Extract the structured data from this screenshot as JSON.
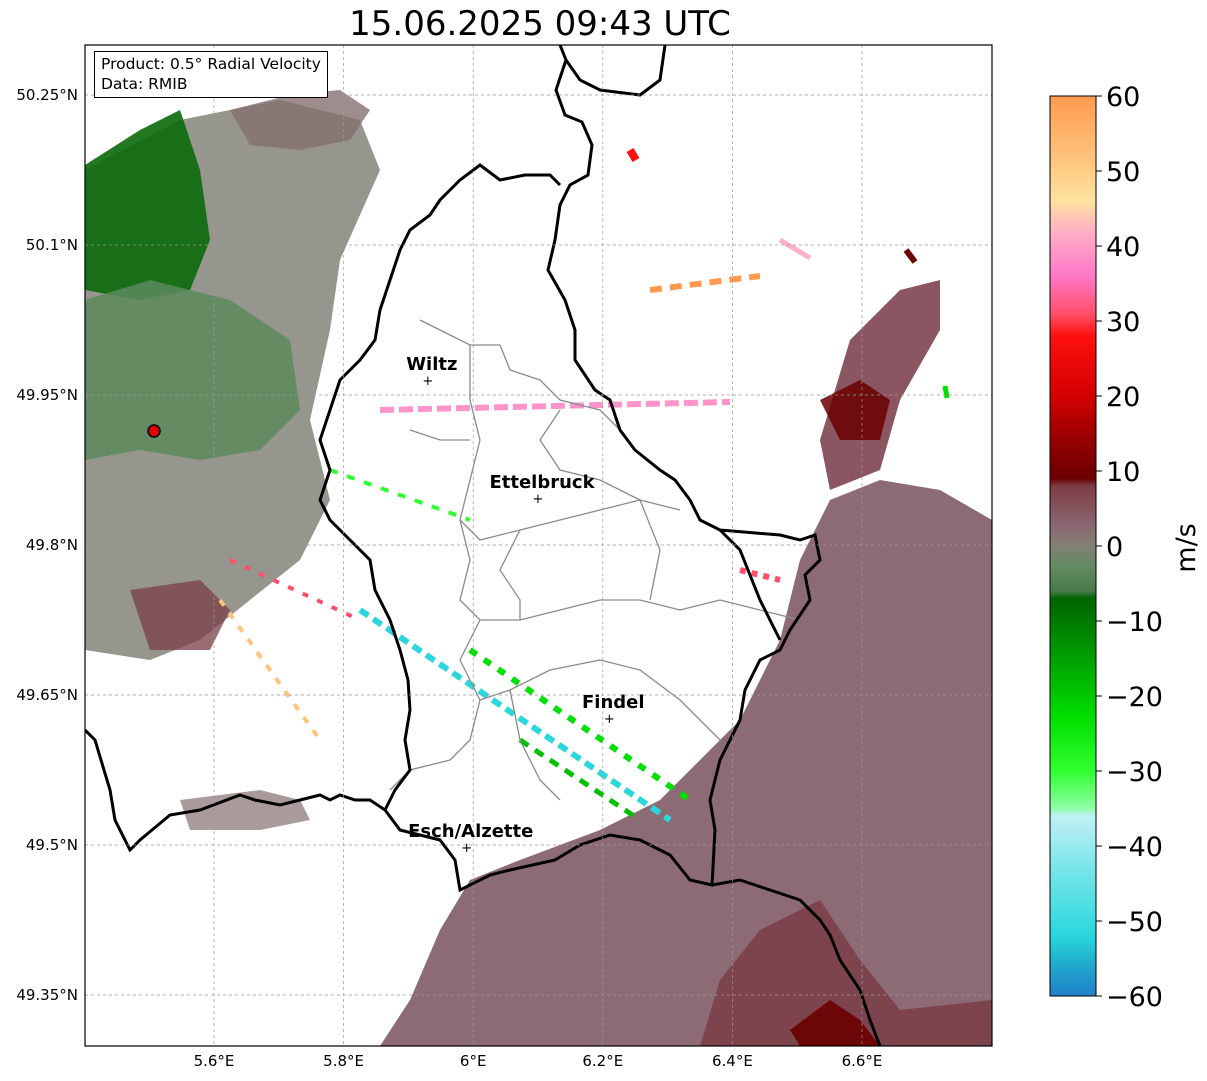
{
  "title": "15.06.2025 09:43 UTC",
  "info": {
    "product": "Product: 0.5° Radial Velocity",
    "data": "Data: RMIB"
  },
  "map": {
    "lat_ticks": [
      {
        "value": 50.25,
        "label": "50.25°N"
      },
      {
        "value": 50.1,
        "label": "50.1°N"
      },
      {
        "value": 49.95,
        "label": "49.95°N"
      },
      {
        "value": 49.8,
        "label": "49.8°N"
      },
      {
        "value": 49.65,
        "label": "49.65°N"
      },
      {
        "value": 49.5,
        "label": "49.5°N"
      },
      {
        "value": 49.35,
        "label": "49.35°N"
      }
    ],
    "lon_ticks": [
      {
        "value": 5.6,
        "label": "5.6°E"
      },
      {
        "value": 5.8,
        "label": "5.8°E"
      },
      {
        "value": 6.0,
        "label": "6°E"
      },
      {
        "value": 6.2,
        "label": "6.2°E"
      },
      {
        "value": 6.4,
        "label": "6.4°E"
      },
      {
        "value": 6.6,
        "label": "6.6°E"
      }
    ],
    "grid": true,
    "cities": [
      {
        "name": "Wiltz",
        "lon": 5.93,
        "lat": 49.965
      },
      {
        "name": "Ettelbruck",
        "lon": 6.1,
        "lat": 49.847
      },
      {
        "name": "Findel",
        "lon": 6.21,
        "lat": 49.627
      },
      {
        "name": "Esch/Alzette",
        "lon": 5.99,
        "lat": 49.498
      }
    ],
    "radar_site": {
      "lon": 5.505,
      "lat": 49.915
    }
  },
  "colorbar": {
    "label": "m/s",
    "ticks": [
      "60",
      "50",
      "40",
      "30",
      "20",
      "10",
      "0",
      "−10",
      "−20",
      "−30",
      "−40",
      "−50",
      "−60"
    ],
    "range": [
      -60,
      60
    ],
    "stops": [
      {
        "value": 60,
        "color": "#ff9a50"
      },
      {
        "value": 52,
        "color": "#ffc27a"
      },
      {
        "value": 46,
        "color": "#ffe3a0"
      },
      {
        "value": 42,
        "color": "#ffb0c4"
      },
      {
        "value": 36,
        "color": "#ff78c8"
      },
      {
        "value": 31,
        "color": "#ff4f6a"
      },
      {
        "value": 28,
        "color": "#ff1010"
      },
      {
        "value": 20,
        "color": "#d40000"
      },
      {
        "value": 14,
        "color": "#960000"
      },
      {
        "value": 9,
        "color": "#6a0000"
      },
      {
        "value": 8,
        "color": "#7e3c44"
      },
      {
        "value": 3,
        "color": "#8a6670"
      },
      {
        "value": 0,
        "color": "#848075"
      },
      {
        "value": -3,
        "color": "#5f8a5f"
      },
      {
        "value": -6,
        "color": "#4c7a4a"
      },
      {
        "value": -7,
        "color": "#006400"
      },
      {
        "value": -15,
        "color": "#00a000"
      },
      {
        "value": -23,
        "color": "#00e000"
      },
      {
        "value": -30,
        "color": "#30ff30"
      },
      {
        "value": -35,
        "color": "#90ffa8"
      },
      {
        "value": -36,
        "color": "#c0f0f4"
      },
      {
        "value": -44,
        "color": "#70e4e8"
      },
      {
        "value": -52,
        "color": "#28d8dc"
      },
      {
        "value": -56,
        "color": "#20a8cc"
      },
      {
        "value": -60,
        "color": "#2080c8"
      }
    ]
  }
}
